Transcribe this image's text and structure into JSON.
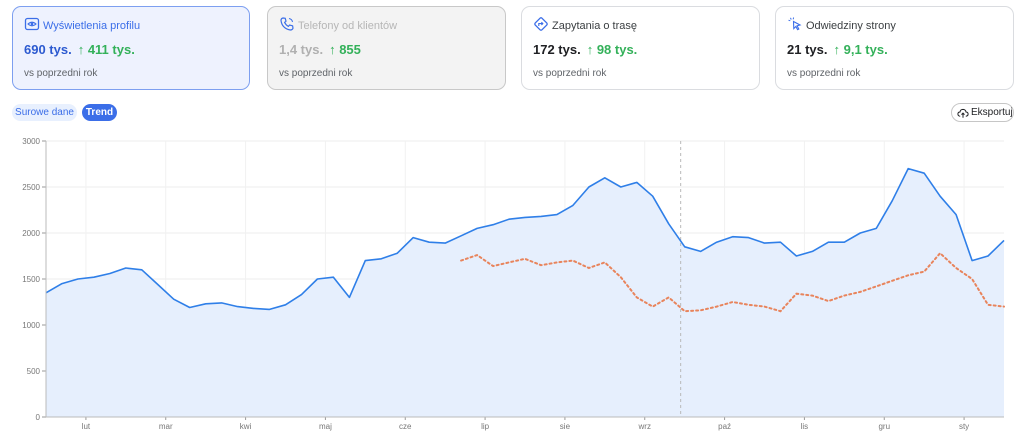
{
  "metrics": [
    {
      "title": "Wyświetlenia profilu",
      "value": "690 tys.",
      "delta": "↑ 411 tys.",
      "sub": "vs poprzedni rok",
      "state": "active",
      "icon": "eye-icon"
    },
    {
      "title": "Telefony od klientów",
      "value": "1,4 tys.",
      "delta": "↑ 855",
      "sub": "vs poprzedni rok",
      "state": "disabled",
      "icon": "phone-icon"
    },
    {
      "title": "Zapytania o trasę",
      "value": "172 tys.",
      "delta": "↑ 98 tys.",
      "sub": "vs poprzedni rok",
      "state": "normal",
      "icon": "directions-icon"
    },
    {
      "title": "Odwiedziny strony",
      "value": "21 tys.",
      "delta": "↑ 9,1 tys.",
      "sub": "vs poprzedni rok",
      "state": "normal",
      "icon": "cursor-click-icon"
    }
  ],
  "controls": {
    "raw_label": "Surowe dane",
    "trend_label": "Trend",
    "export_label": "Eksportuj"
  },
  "colors": {
    "accent": "#3b6ee8",
    "current_line": "#2f7fe8",
    "area_fill": "#e6effd",
    "previous_line": "#e8845c",
    "delta_green": "#34b15a"
  },
  "chart_data": {
    "type": "line",
    "title": "",
    "xlabel": "",
    "ylabel": "",
    "ylim": [
      0,
      3000
    ],
    "yticks": [
      0,
      500,
      1000,
      1500,
      2000,
      2500,
      3000
    ],
    "ytick_labels": [
      "0",
      "500",
      "1000",
      "1500",
      "2000",
      "2500",
      "3000"
    ],
    "months": [
      "lut",
      "mar",
      "kwi",
      "maj",
      "cze",
      "lip",
      "sie",
      "wrz",
      "paź",
      "lis",
      "gru",
      "sty"
    ],
    "x_range": [
      0,
      12
    ],
    "grid": true,
    "current_marker_x": 7.95,
    "series": [
      {
        "style": "solid-area",
        "x": [
          0,
          0.2,
          0.4,
          0.6,
          0.8,
          1.0,
          1.2,
          1.4,
          1.6,
          1.8,
          2.0,
          2.2,
          2.4,
          2.6,
          2.8,
          3.0,
          3.2,
          3.4,
          3.6,
          3.8,
          4.0,
          4.2,
          4.4,
          4.6,
          4.8,
          5.0,
          5.2,
          5.4,
          5.6,
          5.8,
          6.0,
          6.2,
          6.4,
          6.6,
          6.8,
          7.0,
          7.2,
          7.4,
          7.6,
          7.8,
          8.0,
          8.2,
          8.4,
          8.6,
          8.8,
          9.0,
          9.2,
          9.4,
          9.6,
          9.8,
          10.0,
          10.2,
          10.4,
          10.6,
          10.8,
          11.0,
          11.2,
          11.4,
          11.6,
          11.8,
          12.0
        ],
        "values": [
          1350,
          1450,
          1500,
          1520,
          1560,
          1620,
          1600,
          1440,
          1280,
          1190,
          1230,
          1240,
          1200,
          1180,
          1170,
          1220,
          1330,
          1500,
          1520,
          1300,
          1700,
          1720,
          1780,
          1950,
          1900,
          1890,
          1970,
          2050,
          2090,
          2150,
          2170,
          2180,
          2200,
          2300,
          2500,
          2600,
          2500,
          2550,
          2400,
          2100,
          1850,
          1800,
          1900,
          1960,
          1950,
          1890,
          1900,
          1750,
          1800,
          1900,
          1900,
          2000,
          2050,
          2350,
          2700,
          2650,
          2400,
          2200,
          1700,
          1750,
          1920
        ]
      },
      {
        "style": "dotted",
        "x": [
          5.2,
          5.4,
          5.6,
          5.8,
          6.0,
          6.2,
          6.4,
          6.6,
          6.8,
          7.0,
          7.2,
          7.4,
          7.6,
          7.8,
          8.0,
          8.2,
          8.4,
          8.6,
          8.8,
          9.0,
          9.2,
          9.4,
          9.6,
          9.8,
          10.0,
          10.2,
          10.4,
          10.6,
          10.8,
          11.0,
          11.2,
          11.4,
          11.6,
          11.8,
          12.0
        ],
        "values": [
          1700,
          1760,
          1640,
          1680,
          1720,
          1650,
          1680,
          1700,
          1620,
          1680,
          1520,
          1300,
          1200,
          1300,
          1150,
          1160,
          1200,
          1250,
          1220,
          1200,
          1150,
          1340,
          1320,
          1260,
          1320,
          1360,
          1420,
          1480,
          1540,
          1580,
          1780,
          1620,
          1500,
          1220,
          1200
        ]
      }
    ]
  }
}
